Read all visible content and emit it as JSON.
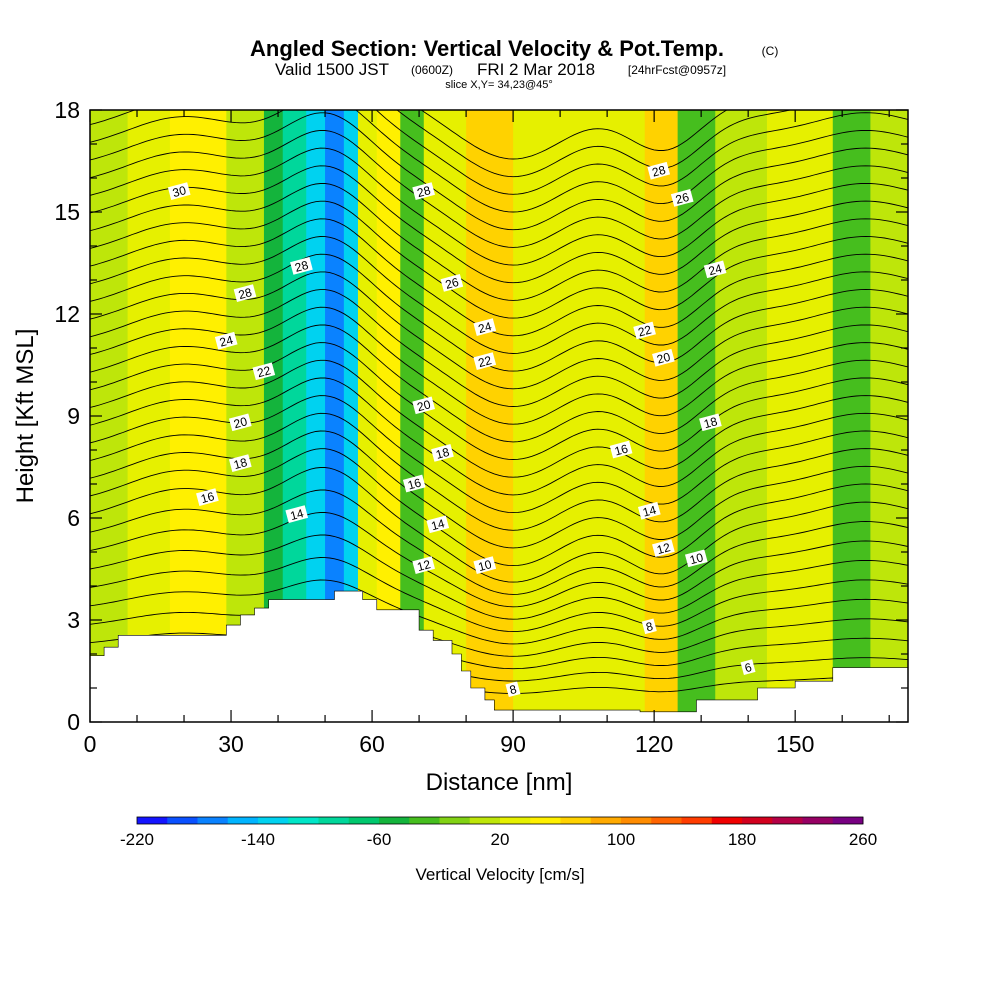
{
  "title": {
    "main": "Angled Section: Vertical Velocity & Pot.Temp.",
    "main_tag": "(C)",
    "valid_prefix": "Valid 1500 JST",
    "valid_utc": "(0600Z)",
    "valid_date": "FRI 2 Mar 2018",
    "forecast": "[24hrFcst@0957z]",
    "slice": "slice X,Y= 34,23@45°"
  },
  "chart_data": {
    "type": "heatmap",
    "xlabel": "Distance [nm]",
    "ylabel": "Height [Kft MSL]",
    "xlim": [
      0,
      174
    ],
    "ylim": [
      0,
      18
    ],
    "x_ticks": [
      "0",
      "30",
      "60",
      "90",
      "120",
      "150"
    ],
    "x_tick_values": [
      0,
      30,
      60,
      90,
      120,
      150
    ],
    "y_ticks": [
      "0",
      "3",
      "6",
      "9",
      "12",
      "15",
      "18"
    ],
    "y_tick_values": [
      0,
      3,
      6,
      9,
      12,
      15,
      18
    ],
    "colorbar": {
      "label": "Vertical Velocity [cm/s]",
      "min": -220,
      "max": 260,
      "step": 20,
      "tick_labels": [
        "-220",
        "-140",
        "-60",
        "20",
        "100",
        "180",
        "260"
      ],
      "tick_values": [
        -220,
        -140,
        -60,
        20,
        100,
        180,
        260
      ],
      "colors": [
        "#1414ff",
        "#0a50ff",
        "#0a82ff",
        "#00b4ff",
        "#00d2f0",
        "#00e6c8",
        "#00d79b",
        "#00c86e",
        "#14b43c",
        "#46be1e",
        "#82d214",
        "#bee60a",
        "#e6f000",
        "#fff000",
        "#ffd200",
        "#ffaa00",
        "#ff8c00",
        "#ff6400",
        "#ff3c00",
        "#f00000",
        "#d2001e",
        "#b40046",
        "#960064",
        "#780082"
      ]
    },
    "terrain": [
      [
        0,
        1.95
      ],
      [
        3,
        1.95
      ],
      [
        3,
        2.2
      ],
      [
        6,
        2.2
      ],
      [
        6,
        2.55
      ],
      [
        29,
        2.55
      ],
      [
        29,
        2.85
      ],
      [
        32,
        2.85
      ],
      [
        32,
        3.15
      ],
      [
        35,
        3.15
      ],
      [
        35,
        3.35
      ],
      [
        38,
        3.35
      ],
      [
        38,
        3.6
      ],
      [
        52,
        3.6
      ],
      [
        52,
        3.85
      ],
      [
        58,
        3.85
      ],
      [
        58,
        3.6
      ],
      [
        61,
        3.6
      ],
      [
        61,
        3.3
      ],
      [
        70,
        3.3
      ],
      [
        70,
        2.7
      ],
      [
        73,
        2.7
      ],
      [
        73,
        2.4
      ],
      [
        77,
        2.4
      ],
      [
        77,
        2.0
      ],
      [
        79,
        2.0
      ],
      [
        79,
        1.5
      ],
      [
        81,
        1.5
      ],
      [
        81,
        1.0
      ],
      [
        84,
        1.0
      ],
      [
        84,
        0.65
      ],
      [
        86,
        0.65
      ],
      [
        86,
        0.35
      ],
      [
        117,
        0.35
      ],
      [
        117,
        0.3
      ],
      [
        129,
        0.3
      ],
      [
        129,
        0.65
      ],
      [
        142,
        0.65
      ],
      [
        142,
        1.0
      ],
      [
        150,
        1.0
      ],
      [
        150,
        1.2
      ],
      [
        158,
        1.2
      ],
      [
        158,
        1.6
      ],
      [
        174,
        1.6
      ]
    ],
    "velocity_bands": [
      {
        "x": 0,
        "w": 8,
        "v": 0
      },
      {
        "x": 8,
        "w": 9,
        "v": 20
      },
      {
        "x": 17,
        "w": 12,
        "v": 40
      },
      {
        "x": 29,
        "w": 8,
        "v": 10
      },
      {
        "x": 37,
        "w": 4,
        "v": -50
      },
      {
        "x": 41,
        "w": 5,
        "v": -100
      },
      {
        "x": 46,
        "w": 4,
        "v": -140
      },
      {
        "x": 50,
        "w": 4,
        "v": -180
      },
      {
        "x": 54,
        "w": 3,
        "v": -140
      },
      {
        "x": 57,
        "w": 4,
        "v": 20
      },
      {
        "x": 61,
        "w": 5,
        "v": 40
      },
      {
        "x": 66,
        "w": 5,
        "v": -40
      },
      {
        "x": 71,
        "w": 9,
        "v": 30
      },
      {
        "x": 80,
        "w": 10,
        "v": 60
      },
      {
        "x": 90,
        "w": 20,
        "v": 20
      },
      {
        "x": 110,
        "w": 8,
        "v": 30
      },
      {
        "x": 118,
        "w": 7,
        "v": 60
      },
      {
        "x": 125,
        "w": 8,
        "v": -40
      },
      {
        "x": 133,
        "w": 11,
        "v": 0
      },
      {
        "x": 144,
        "w": 14,
        "v": 20
      },
      {
        "x": 158,
        "w": 8,
        "v": -30
      },
      {
        "x": 166,
        "w": 8,
        "v": 10
      }
    ],
    "contour_labels": [
      {
        "text": "30",
        "x": 19,
        "y": 15.6
      },
      {
        "text": "28",
        "x": 45,
        "y": 13.4
      },
      {
        "text": "28",
        "x": 33,
        "y": 12.6
      },
      {
        "text": "24",
        "x": 29,
        "y": 11.2
      },
      {
        "text": "22",
        "x": 37,
        "y": 10.3
      },
      {
        "text": "20",
        "x": 32,
        "y": 8.8
      },
      {
        "text": "18",
        "x": 32,
        "y": 7.6
      },
      {
        "text": "16",
        "x": 25,
        "y": 6.6
      },
      {
        "text": "14",
        "x": 44,
        "y": 6.1
      },
      {
        "text": "28",
        "x": 71,
        "y": 15.6
      },
      {
        "text": "26",
        "x": 77,
        "y": 12.9
      },
      {
        "text": "24",
        "x": 84,
        "y": 11.6
      },
      {
        "text": "22",
        "x": 84,
        "y": 10.6
      },
      {
        "text": "20",
        "x": 71,
        "y": 9.3
      },
      {
        "text": "18",
        "x": 75,
        "y": 7.9
      },
      {
        "text": "16",
        "x": 69,
        "y": 7.0
      },
      {
        "text": "14",
        "x": 74,
        "y": 5.8
      },
      {
        "text": "12",
        "x": 71,
        "y": 4.6
      },
      {
        "text": "10",
        "x": 84,
        "y": 4.6
      },
      {
        "text": "8",
        "x": 90,
        "y": 0.95
      },
      {
        "text": "28",
        "x": 121,
        "y": 16.2
      },
      {
        "text": "26",
        "x": 126,
        "y": 15.4
      },
      {
        "text": "24",
        "x": 133,
        "y": 13.3
      },
      {
        "text": "22",
        "x": 118,
        "y": 11.5
      },
      {
        "text": "20",
        "x": 122,
        "y": 10.7
      },
      {
        "text": "18",
        "x": 132,
        "y": 8.8
      },
      {
        "text": "16",
        "x": 113,
        "y": 8.0
      },
      {
        "text": "14",
        "x": 119,
        "y": 6.2
      },
      {
        "text": "12",
        "x": 122,
        "y": 5.1
      },
      {
        "text": "10",
        "x": 129,
        "y": 4.8
      },
      {
        "text": "8",
        "x": 119,
        "y": 2.8
      },
      {
        "text": "6",
        "x": 140,
        "y": 1.6
      }
    ],
    "grid": false
  }
}
